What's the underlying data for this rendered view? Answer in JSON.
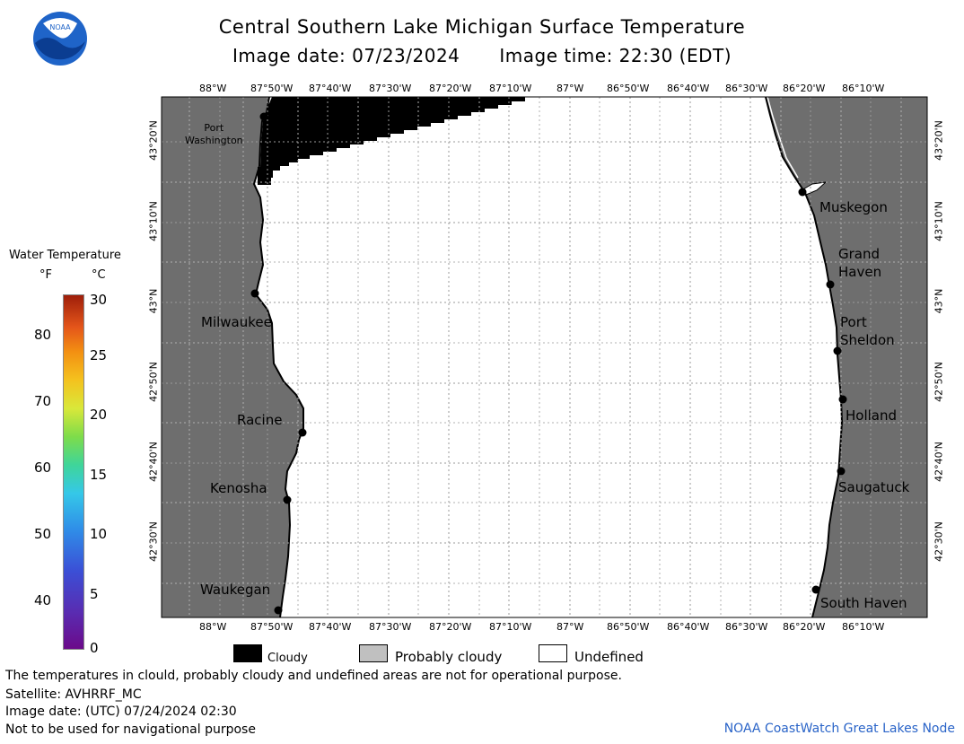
{
  "header": {
    "title": "Central Southern Lake Michigan Surface Temperature",
    "image_date": "Image date: 07/23/2024",
    "image_time": "Image time: 22:30 (EDT)"
  },
  "logo": {
    "text": "NOAA",
    "icon": "noaa-logo-icon"
  },
  "map": {
    "lon_labels": [
      "88°W",
      "87°50'W",
      "87°40'W",
      "87°30'W",
      "87°20'W",
      "87°10'W",
      "87°W",
      "86°50'W",
      "86°40'W",
      "86°30'W",
      "86°20'W",
      "86°10'W"
    ],
    "lat_labels": [
      "43°20'N",
      "43°10'N",
      "43°N",
      "42°50'N",
      "42°40'N",
      "42°30'N"
    ],
    "cities": {
      "port_washington": "Port\nWashington",
      "milwaukee": "Milwaukee",
      "racine": "Racine",
      "kenosha": "Kenosha",
      "waukegan": "Waukegan",
      "muskegon": "Muskegon",
      "grand_haven": "Grand\nHaven",
      "port_sheldon": "Port\nSheldon",
      "holland": "Holland",
      "saugatuck": "Saugatuck",
      "south_haven": "South Haven"
    },
    "colors": {
      "land": "#6e6e6e",
      "water": "#ffffff",
      "cloud": "#000000",
      "grid": "#9a9a9a"
    }
  },
  "legend": {
    "title": "Water Temperature",
    "unit_f": "°F",
    "unit_c": "°C",
    "f_ticks": [
      "80",
      "70",
      "60",
      "50",
      "40"
    ],
    "c_ticks": [
      "30",
      "25",
      "20",
      "15",
      "10",
      "5",
      "0"
    ]
  },
  "key": {
    "cloudy": "Cloudy",
    "probably_cloudy": "Probably cloudy",
    "undefined": "Undefined"
  },
  "footer": {
    "disclaimer": "The temperatures in clould, probably cloudy and undefined areas are not for operational purpose.",
    "satellite": "Satellite: AVHRRF_MC",
    "utc_date": "Image date: (UTC) 07/24/2024  02:30",
    "nav_note": "Not to be used for navigational purpose",
    "credit": "NOAA CoastWatch Great Lakes Node"
  }
}
